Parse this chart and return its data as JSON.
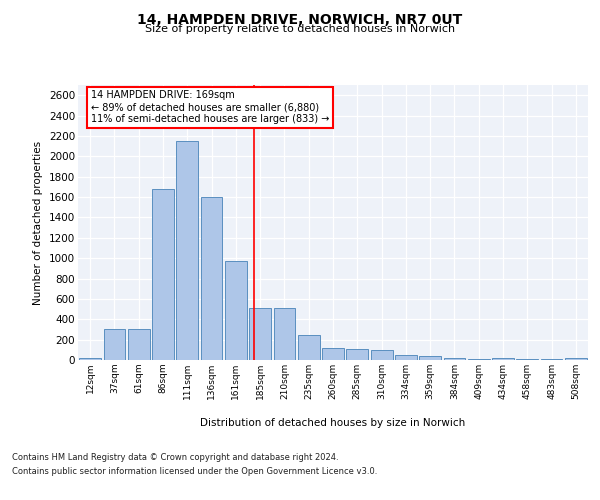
{
  "title": "14, HAMPDEN DRIVE, NORWICH, NR7 0UT",
  "subtitle": "Size of property relative to detached houses in Norwich",
  "xlabel": "Distribution of detached houses by size in Norwich",
  "ylabel": "Number of detached properties",
  "categories": [
    "12sqm",
    "37sqm",
    "61sqm",
    "86sqm",
    "111sqm",
    "136sqm",
    "161sqm",
    "185sqm",
    "210sqm",
    "235sqm",
    "260sqm",
    "285sqm",
    "310sqm",
    "334sqm",
    "359sqm",
    "384sqm",
    "409sqm",
    "434sqm",
    "458sqm",
    "483sqm",
    "508sqm"
  ],
  "values": [
    20,
    300,
    300,
    1680,
    2150,
    1600,
    970,
    510,
    510,
    245,
    120,
    110,
    95,
    45,
    35,
    15,
    10,
    20,
    10,
    10,
    20
  ],
  "bar_color": "#aec6e8",
  "bar_edge_color": "#5a8fc0",
  "bar_edge_width": 0.7,
  "red_line_x": 6.73,
  "annotation_text": "14 HAMPDEN DRIVE: 169sqm\n← 89% of detached houses are smaller (6,880)\n11% of semi-detached houses are larger (833) →",
  "ylim": [
    0,
    2700
  ],
  "yticks": [
    0,
    200,
    400,
    600,
    800,
    1000,
    1200,
    1400,
    1600,
    1800,
    2000,
    2200,
    2400,
    2600
  ],
  "background_color": "#eef2f9",
  "grid_color": "#ffffff",
  "footer_line1": "Contains HM Land Registry data © Crown copyright and database right 2024.",
  "footer_line2": "Contains public sector information licensed under the Open Government Licence v3.0."
}
